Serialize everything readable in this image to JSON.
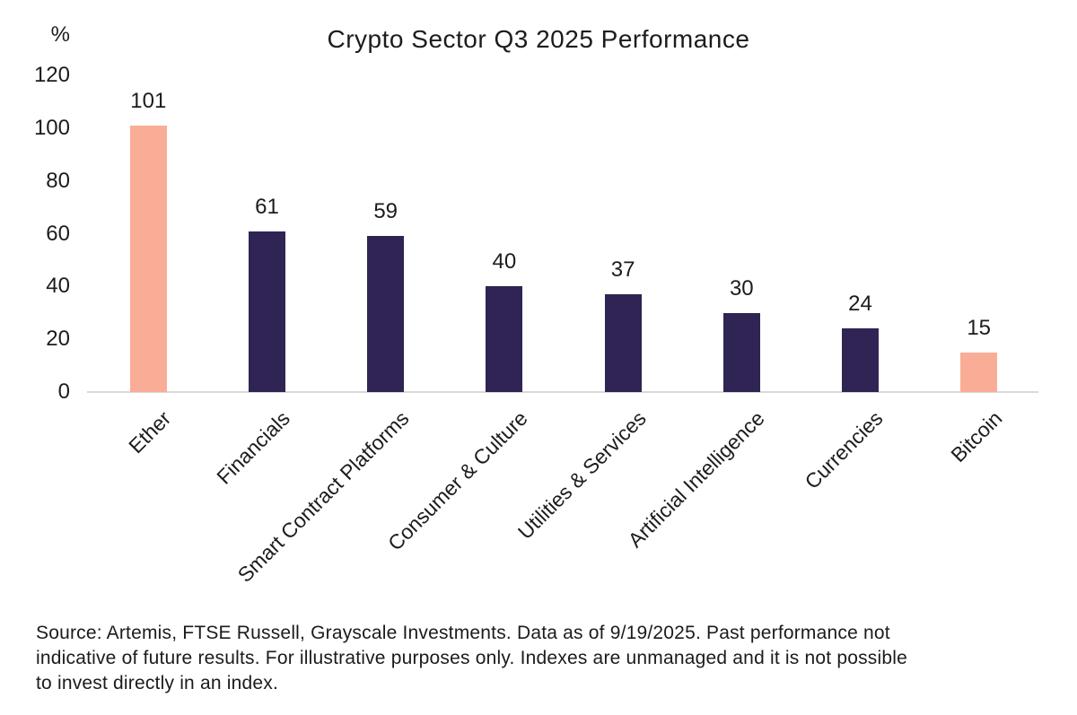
{
  "chart_data": {
    "type": "bar",
    "title": "Crypto Sector Q3 2025 Performance",
    "ylabel": "%",
    "xlabel": "",
    "categories": [
      "Ether",
      "Financials",
      "Smart Contract Platforms",
      "Consumer & Culture",
      "Utilities & Services",
      "Artificial Intelligence",
      "Currencies",
      "Bitcoin"
    ],
    "values": [
      101,
      61,
      59,
      40,
      37,
      30,
      24,
      15
    ],
    "bar_colors": [
      "#faad96",
      "#2f2453",
      "#2f2453",
      "#2f2453",
      "#2f2453",
      "#2f2453",
      "#2f2453",
      "#faad96"
    ],
    "yticks": [
      0,
      20,
      40,
      60,
      80,
      100,
      120
    ],
    "ylim": [
      0,
      120
    ],
    "grid": false,
    "legend": "none",
    "data_labels": true,
    "axis_line_color": "#d9d9d9"
  },
  "colors": {
    "accent_salmon": "#faad96",
    "accent_purple": "#2f2453",
    "text": "#1c1c1c",
    "background": "#ffffff"
  },
  "footer": {
    "lines": [
      "Source: Artemis, FTSE Russell, Grayscale Investments. Data as of 9/19/2025. Past performance not",
      "indicative of future results. For illustrative purposes only. Indexes are unmanaged and it is not possible",
      "to invest directly in an index."
    ]
  }
}
